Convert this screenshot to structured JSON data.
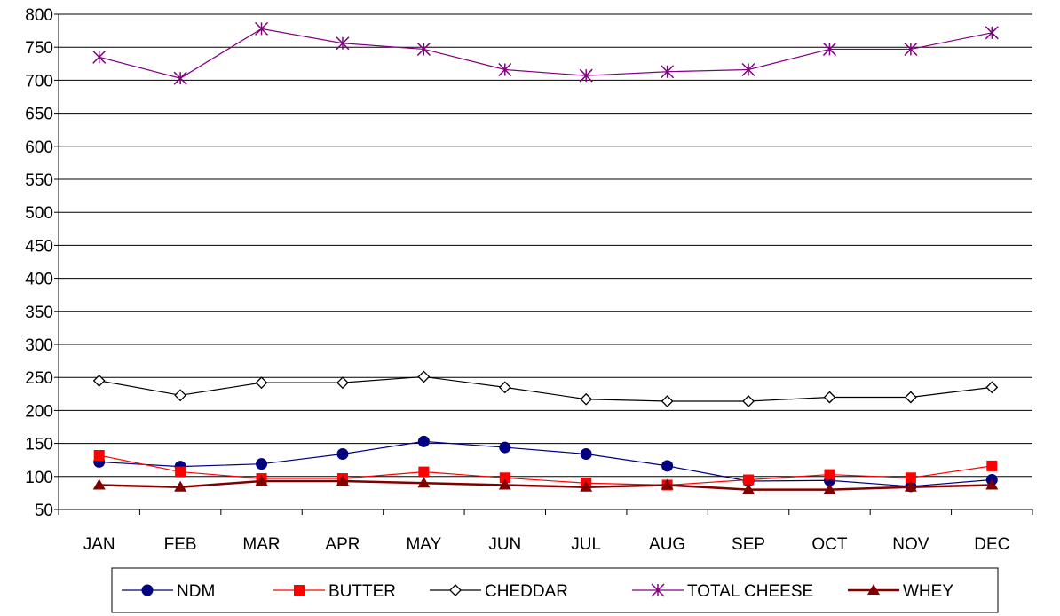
{
  "chart_data": {
    "type": "line",
    "title": "",
    "xlabel": "",
    "ylabel": "",
    "categories": [
      "JAN",
      "FEB",
      "MAR",
      "APR",
      "MAY",
      "JUN",
      "JUL",
      "AUG",
      "SEP",
      "OCT",
      "NOV",
      "DEC"
    ],
    "ylim": [
      50,
      800
    ],
    "yticks": [
      50,
      100,
      150,
      200,
      250,
      300,
      350,
      400,
      450,
      500,
      550,
      600,
      650,
      700,
      750,
      800
    ],
    "grid": true,
    "legend_position": "bottom",
    "series": [
      {
        "name": "NDM",
        "color": "#000080",
        "marker": "circle",
        "values": [
          122,
          115,
          119,
          134,
          153,
          144,
          134,
          116,
          93,
          94,
          85,
          95
        ]
      },
      {
        "name": "BUTTER",
        "color": "#ff0000",
        "marker": "square",
        "values": [
          132,
          107,
          97,
          97,
          107,
          98,
          90,
          87,
          95,
          103,
          98,
          116
        ]
      },
      {
        "name": "CHEDDAR",
        "color": "#000000",
        "marker": "diamond-open",
        "values": [
          245,
          223,
          242,
          242,
          251,
          235,
          217,
          214,
          214,
          220,
          220,
          235
        ]
      },
      {
        "name": "TOTAL CHEESE",
        "color": "#800080",
        "marker": "asterisk",
        "values": [
          735,
          703,
          778,
          756,
          747,
          716,
          707,
          713,
          716,
          747,
          747,
          772
        ]
      },
      {
        "name": "WHEY",
        "color": "#800000",
        "marker": "triangle",
        "values": [
          87,
          84,
          93,
          93,
          90,
          87,
          84,
          87,
          80,
          80,
          84,
          87
        ]
      }
    ]
  }
}
